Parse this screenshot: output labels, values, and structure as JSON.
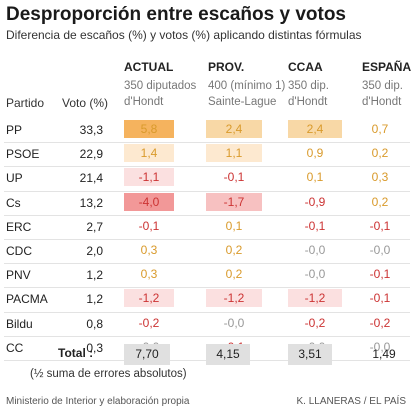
{
  "title": "Desproporción entre escaños y votos",
  "subtitle": "Diferencia de escaños (%) y votos (%) aplicando distintas fórmulas",
  "col_party_label": "Partido",
  "col_vote_label": "Voto (%)",
  "colors": {
    "pos_strong": "#f5b35e",
    "pos_mid": "#f8d8a6",
    "pos_light": "#fde9d0",
    "neg_strong": "#f29898",
    "neg_mid": "#f7c1c1",
    "neg_light": "#fbe0e0",
    "total_box": "#e0e0e0",
    "text_pos": "#d99a2b",
    "text_neg": "#cc3333",
    "text_zero": "#999999"
  },
  "chart_data": {
    "type": "table",
    "title": "Desproporción entre escaños y votos",
    "subtitle": "Diferencia de escaños (%) y votos (%) aplicando distintas fórmulas",
    "columns": [
      {
        "name": "ACTUAL",
        "line1": "350 diputados",
        "line2": "d'Hondt"
      },
      {
        "name": "PROV.",
        "line1": "400 (mínimo 1)",
        "line2": "Sainte-Lague"
      },
      {
        "name": "CCAA",
        "line1": "350 dip.",
        "line2": "d'Hondt"
      },
      {
        "name": "ESPAÑA",
        "line1": "350 dip.",
        "line2": "d'Hondt"
      }
    ],
    "rows": [
      {
        "party": "PP",
        "vote": "33,3",
        "values": [
          "5,8",
          "2,4",
          "2,4",
          "0,7"
        ]
      },
      {
        "party": "PSOE",
        "vote": "22,9",
        "values": [
          "1,4",
          "1,1",
          "0,9",
          "0,2"
        ]
      },
      {
        "party": "UP",
        "vote": "21,4",
        "values": [
          "-1,1",
          "-0,1",
          "0,1",
          "0,3"
        ]
      },
      {
        "party": "Cs",
        "vote": "13,2",
        "values": [
          "-4,0",
          "-1,7",
          "-0,9",
          "0,2"
        ]
      },
      {
        "party": "ERC",
        "vote": "2,7",
        "values": [
          "-0,1",
          "0,1",
          "-0,1",
          "-0,1"
        ]
      },
      {
        "party": "CDC",
        "vote": "2,0",
        "values": [
          "0,3",
          "0,2",
          "-0,0",
          "-0,0"
        ]
      },
      {
        "party": "PNV",
        "vote": "1,2",
        "values": [
          "0,3",
          "0,2",
          "-0,0",
          "-0,1"
        ]
      },
      {
        "party": "PACMA",
        "vote": "1,2",
        "values": [
          "-1,2",
          "-1,2",
          "-1,2",
          "-0,1"
        ]
      },
      {
        "party": "Bildu",
        "vote": "0,8",
        "values": [
          "-0,2",
          "-0,0",
          "-0,2",
          "-0,2"
        ]
      },
      {
        "party": "CC",
        "vote": "0,3",
        "values": [
          "-0,0",
          "-0,1",
          "-0,0",
          "-0,0"
        ]
      }
    ],
    "total_label": "Total :",
    "totals": [
      "7,70",
      "4,15",
      "3,51",
      "1,49"
    ],
    "note": "(½ suma de errores absolutos)"
  },
  "footer": {
    "source": "Ministerio de Interior y elaboración propia",
    "credit": "K. LLANERAS  /  EL PAÍS"
  }
}
